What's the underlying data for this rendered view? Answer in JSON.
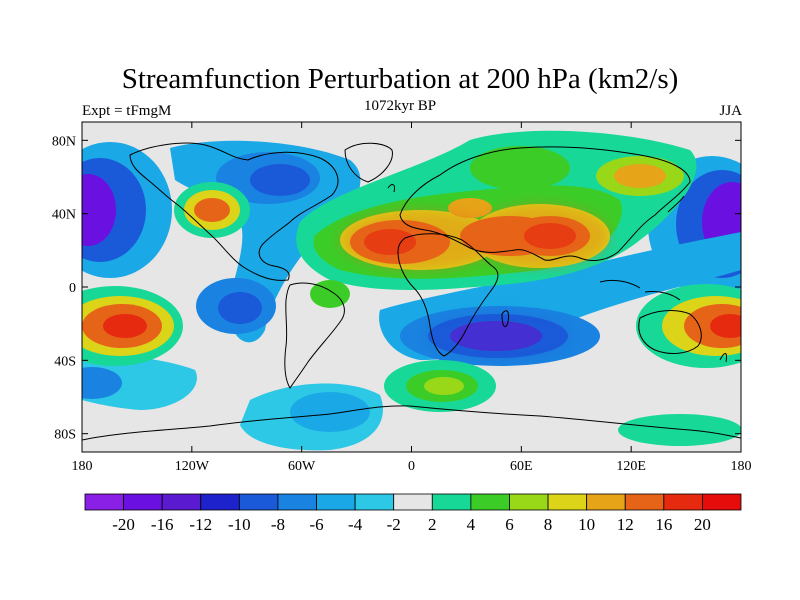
{
  "title": "Streamfunction Perturbation at 200 hPa (km2/s)",
  "left_label": "Expt = tFmgM",
  "center_label": "1072kyr BP",
  "right_label": "JJA",
  "y_ticks": [
    {
      "lat": 80,
      "label": "80N"
    },
    {
      "lat": 40,
      "label": "40N"
    },
    {
      "lat": 0,
      "label": "0"
    },
    {
      "lat": -40,
      "label": "40S"
    },
    {
      "lat": -80,
      "label": "80S"
    }
  ],
  "x_ticks": [
    {
      "lon": -180,
      "label": "180"
    },
    {
      "lon": -120,
      "label": "120W"
    },
    {
      "lon": -60,
      "label": "60W"
    },
    {
      "lon": 0,
      "label": "0"
    },
    {
      "lon": 60,
      "label": "60E"
    },
    {
      "lon": 120,
      "label": "120E"
    },
    {
      "lon": 180,
      "label": "180"
    }
  ],
  "colorbar": {
    "colors": [
      "#8a1fe6",
      "#6a10e0",
      "#5a1ad0",
      "#1e22cc",
      "#1a5ad8",
      "#1a82e0",
      "#1aa8e6",
      "#2cc8e6",
      "#e6e6e6",
      "#18d898",
      "#3ccc28",
      "#98d818",
      "#dcd418",
      "#e6a418",
      "#e66418",
      "#e62a10",
      "#e60c0c"
    ],
    "labels": [
      "-20",
      "-16",
      "-12",
      "-10",
      "-8",
      "-6",
      "-4",
      "-2",
      "2",
      "4",
      "6",
      "8",
      "10",
      "12",
      "16",
      "20"
    ]
  },
  "chart_data": {
    "type": "heatmap",
    "title": "Streamfunction Perturbation at 200 hPa (km2/s)",
    "projection": "cylindrical equidistant",
    "xlim": [
      -180,
      180
    ],
    "ylim": [
      -90,
      90
    ],
    "contour_levels": [
      -20,
      -16,
      -12,
      -10,
      -8,
      -6,
      -4,
      -2,
      2,
      4,
      6,
      8,
      10,
      12,
      16,
      20
    ],
    "features": [
      {
        "lon": -170,
        "lat": 42,
        "value": -20
      },
      {
        "lon": 170,
        "lat": 42,
        "value": -20
      },
      {
        "lon": -85,
        "lat": 58,
        "value": -10
      },
      {
        "lon": -107,
        "lat": 42,
        "value": 12
      },
      {
        "lon": -2,
        "lat": 25,
        "value": 16
      },
      {
        "lon": 75,
        "lat": 28,
        "value": 16
      },
      {
        "lon": 40,
        "lat": 38,
        "value": 16
      },
      {
        "lon": 40,
        "lat": 62,
        "value": 6
      },
      {
        "lon": 120,
        "lat": 58,
        "value": 12
      },
      {
        "lon": 60,
        "lat": -22,
        "value": -16
      },
      {
        "lon": -160,
        "lat": -22,
        "value": 16
      },
      {
        "lon": 165,
        "lat": -22,
        "value": 16
      },
      {
        "lon": -95,
        "lat": -15,
        "value": -6
      },
      {
        "lon": 20,
        "lat": -52,
        "value": 8
      },
      {
        "lon": -55,
        "lat": -68,
        "value": -4
      },
      {
        "lon": 155,
        "lat": -80,
        "value": 4
      }
    ]
  }
}
